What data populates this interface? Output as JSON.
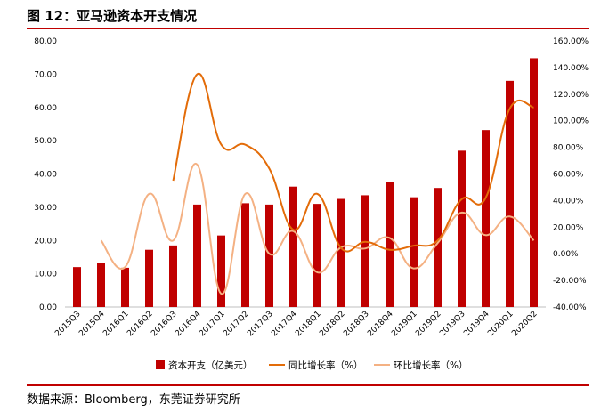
{
  "figure": {
    "title": "图 12：亚马逊资本开支情况",
    "source": "数据来源：Bloomberg，东莞证券研究所"
  },
  "colors": {
    "bar": "#c00000",
    "yoy": "#e36c09",
    "qoq": "#f4b183",
    "rule": "#c00000"
  },
  "chart_data": {
    "type": "bar+line",
    "categories": [
      "2015Q3",
      "2015Q4",
      "2016Q1",
      "2016Q2",
      "2016Q3",
      "2016Q4",
      "2017Q1",
      "2017Q2",
      "2017Q3",
      "2017Q4",
      "2018Q1",
      "2018Q2",
      "2018Q3",
      "2018Q4",
      "2019Q1",
      "2019Q2",
      "2019Q3",
      "2019Q4",
      "2020Q1",
      "2020Q2"
    ],
    "series": [
      {
        "name": "资本开支（亿美元）",
        "type": "bar",
        "axis": "left",
        "values": [
          12.0,
          13.2,
          11.8,
          17.2,
          18.5,
          30.8,
          21.5,
          31.2,
          30.8,
          36.2,
          31.0,
          32.5,
          33.6,
          37.5,
          33.0,
          35.8,
          47.0,
          53.2,
          68.0,
          74.8
        ]
      },
      {
        "name": "同比增长率（%）",
        "type": "line",
        "axis": "right",
        "values": [
          null,
          null,
          null,
          null,
          55.0,
          135.0,
          82.0,
          82.0,
          64.0,
          18.0,
          45.0,
          4.0,
          9.0,
          3.0,
          6.0,
          10.0,
          41.0,
          42.0,
          109.0,
          110.0
        ]
      },
      {
        "name": "环比增长率（%）",
        "type": "line",
        "axis": "right",
        "values": [
          null,
          10.0,
          -10.0,
          45.0,
          10.0,
          67.0,
          -30.0,
          45.0,
          0.0,
          17.0,
          -14.0,
          5.0,
          4.0,
          12.0,
          -11.0,
          8.0,
          31.0,
          14.0,
          28.0,
          10.0
        ]
      }
    ],
    "y_left": {
      "min": 0,
      "max": 80,
      "step": 10,
      "tick_labels": [
        "0.00",
        "10.00",
        "20.00",
        "30.00",
        "40.00",
        "50.00",
        "60.00",
        "70.00",
        "80.00"
      ]
    },
    "y_right": {
      "min": -40,
      "max": 160,
      "step": 20,
      "tick_labels": [
        "-40.00%",
        "-20.00%",
        "0.00%",
        "20.00%",
        "40.00%",
        "60.00%",
        "80.00%",
        "100.00%",
        "120.00%",
        "140.00%",
        "160.00%"
      ]
    },
    "legend": [
      "资本开支（亿美元）",
      "同比增长率（%）",
      "环比增长率（%）"
    ],
    "legend_position": "bottom",
    "grid": false
  }
}
